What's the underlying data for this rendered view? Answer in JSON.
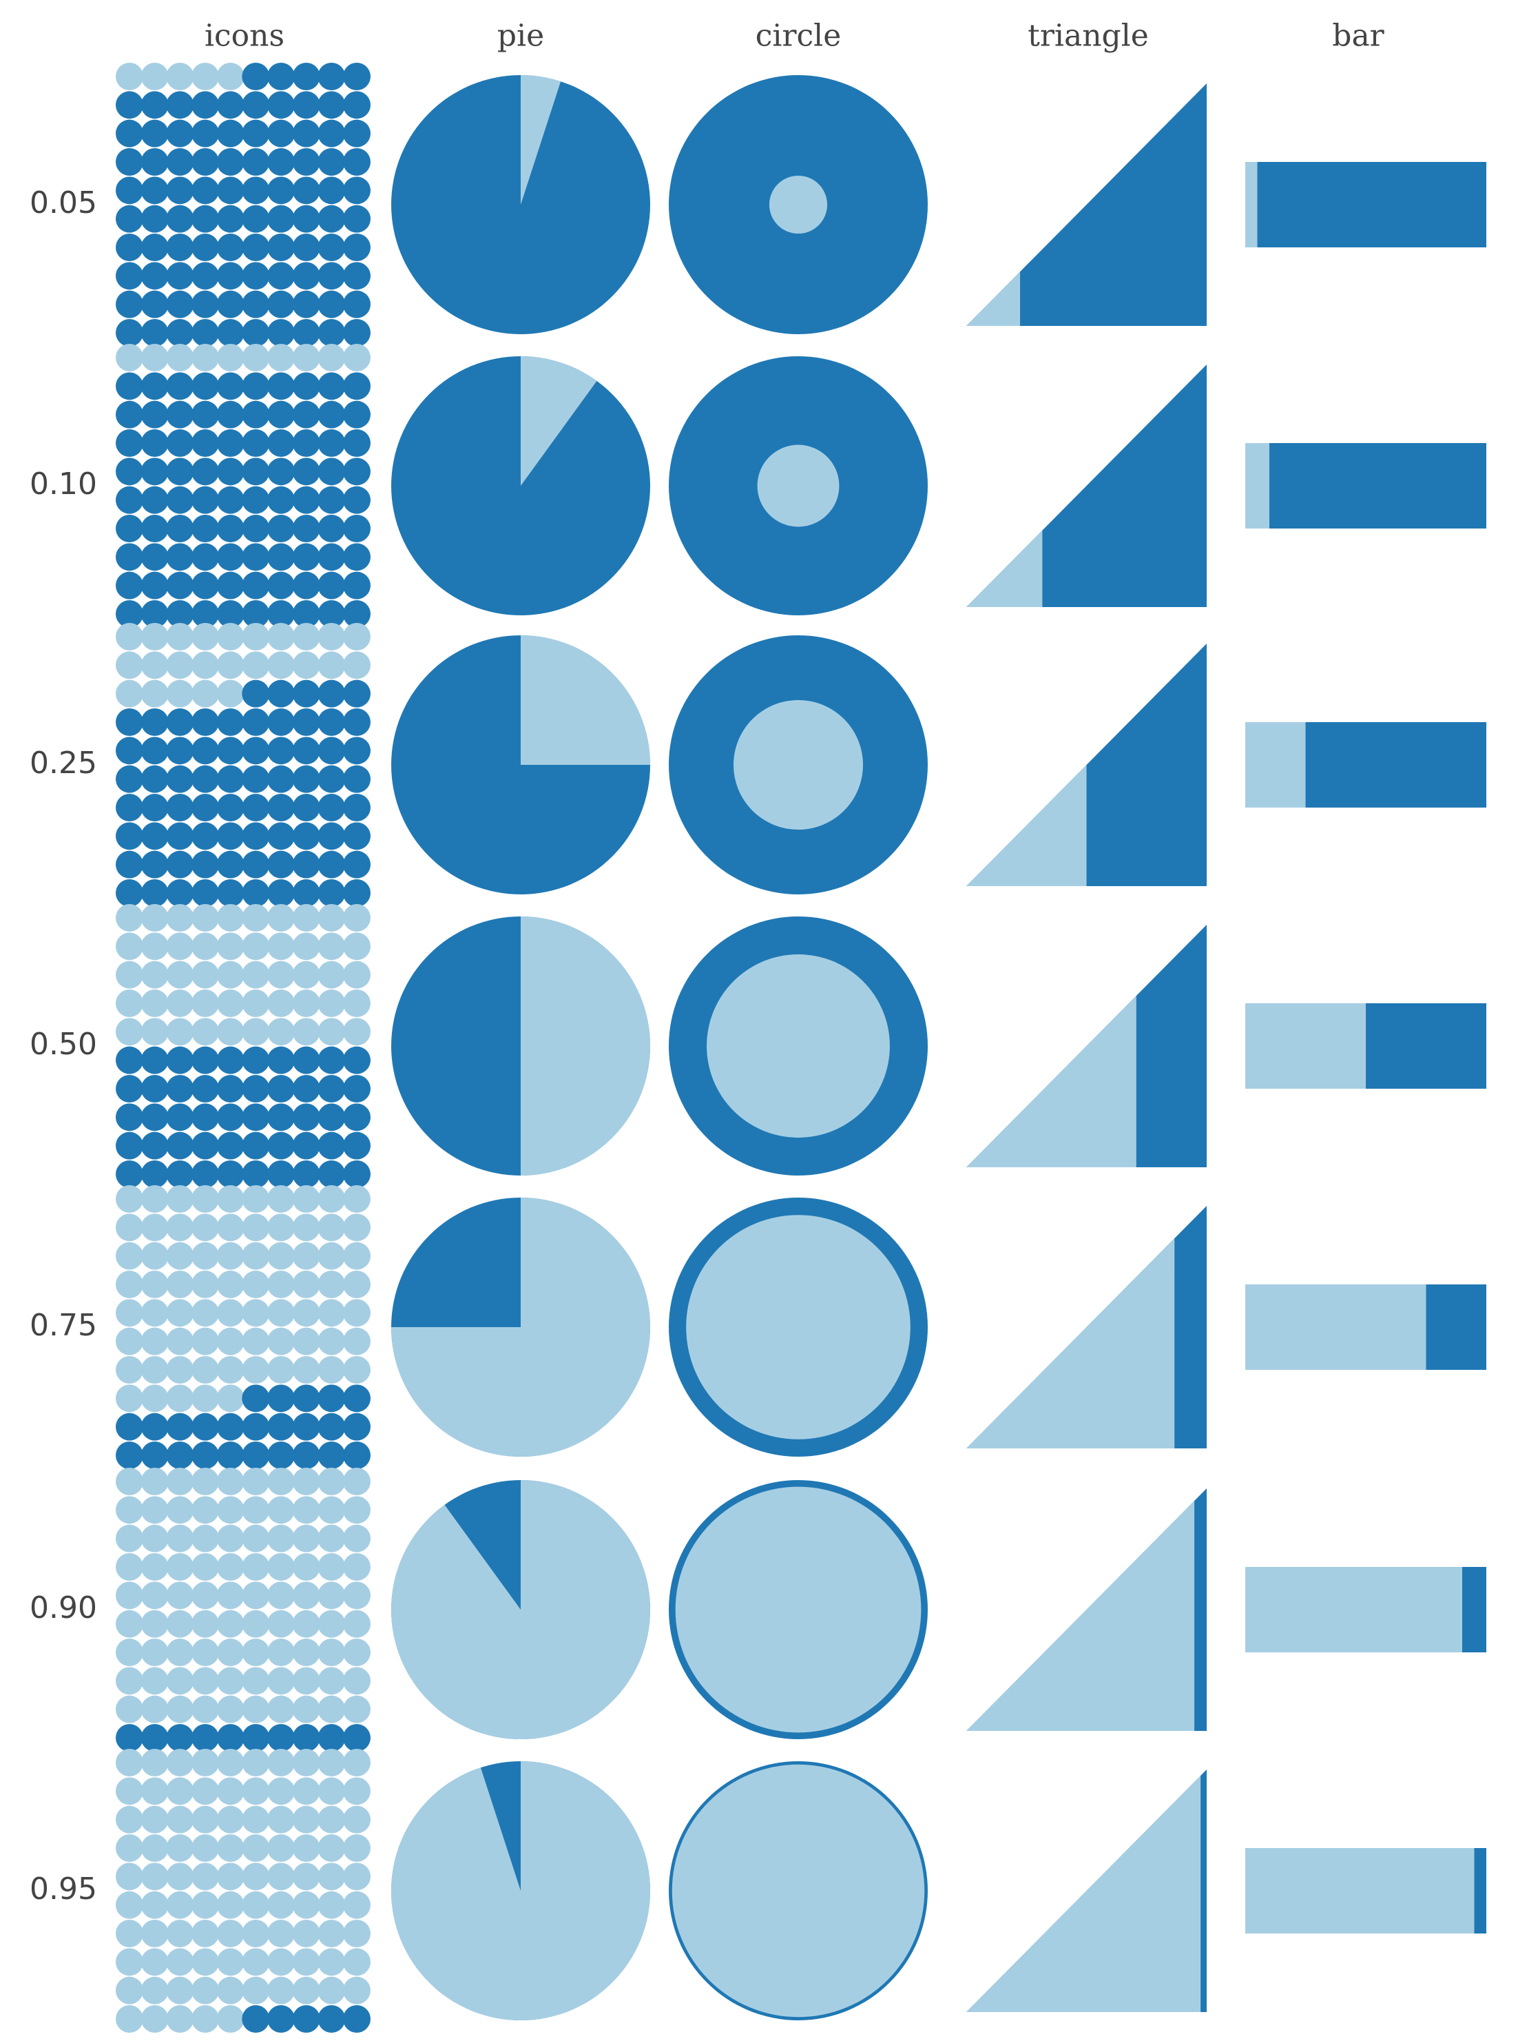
{
  "chart_data": {
    "type": "proportion-glyph-matrix",
    "columns": [
      "icons",
      "pie",
      "circle",
      "triangle",
      "bar"
    ],
    "rows": [
      "0.05",
      "0.10",
      "0.25",
      "0.50",
      "0.75",
      "0.90",
      "0.95"
    ],
    "values": [
      0.05,
      0.1,
      0.25,
      0.5,
      0.75,
      0.9,
      0.95
    ],
    "icon_grid": {
      "rows": 10,
      "cols": 10
    },
    "colors": {
      "light": "#a6cee3",
      "dark": "#1f78b4",
      "star": "#ffffff",
      "text": "#444444"
    }
  }
}
